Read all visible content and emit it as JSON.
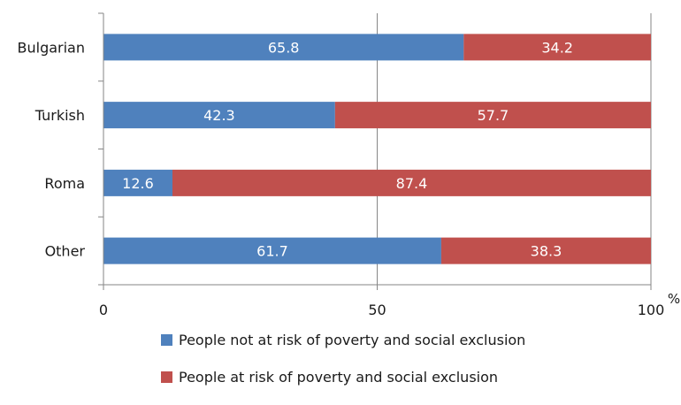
{
  "chart_data": {
    "type": "bar",
    "orientation": "horizontal",
    "stacked": true,
    "categories": [
      "Bulgarian",
      "Turkish",
      "Roma",
      "Other"
    ],
    "series": [
      {
        "name": "People not at risk of poverty and social exclusion",
        "color": "#4f81bd",
        "values": [
          65.8,
          42.3,
          12.6,
          61.7
        ]
      },
      {
        "name": "People at risk of poverty and social exclusion",
        "color": "#c0504d",
        "values": [
          34.2,
          57.7,
          87.4,
          38.3
        ]
      }
    ],
    "xticks": [
      "0",
      "50",
      "100"
    ],
    "xlim": [
      0,
      100
    ],
    "unit": "%",
    "grid": "vertical at 50 and 100",
    "legend_position": "bottom"
  }
}
